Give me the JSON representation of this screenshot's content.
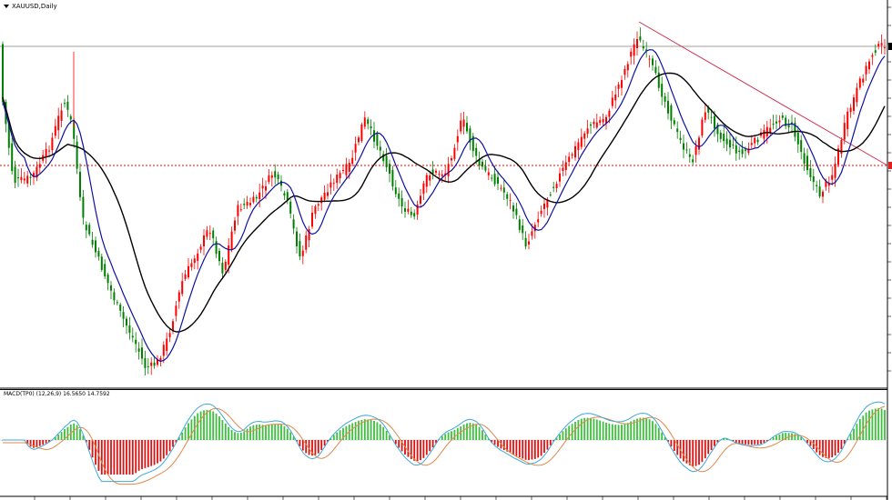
{
  "window": {
    "symbol": "XAUUSD,Daily",
    "indicator_label": "MACD(TP0) (12,26,9) 16.5650 14.7592"
  },
  "colors": {
    "bull_candle": "#ff0000",
    "bear_candle": "#008000",
    "ma_fast": "#1010a0",
    "ma_slow": "#000000",
    "trendline": "#d03050",
    "hline_red": "#ff0000",
    "hline_gray": "#a0a0a0",
    "macd_pos": "#3cbf3c",
    "macd_neg": "#dd1111",
    "signal_main": "#e0884a",
    "signal_sub": "#40a8d8"
  },
  "chart_data": {
    "type": "candlestick",
    "series": [
      {
        "name": "XAUUSD,Daily"
      },
      {
        "name": "MACD(TP0) (12,26,9)"
      }
    ]
  }
}
